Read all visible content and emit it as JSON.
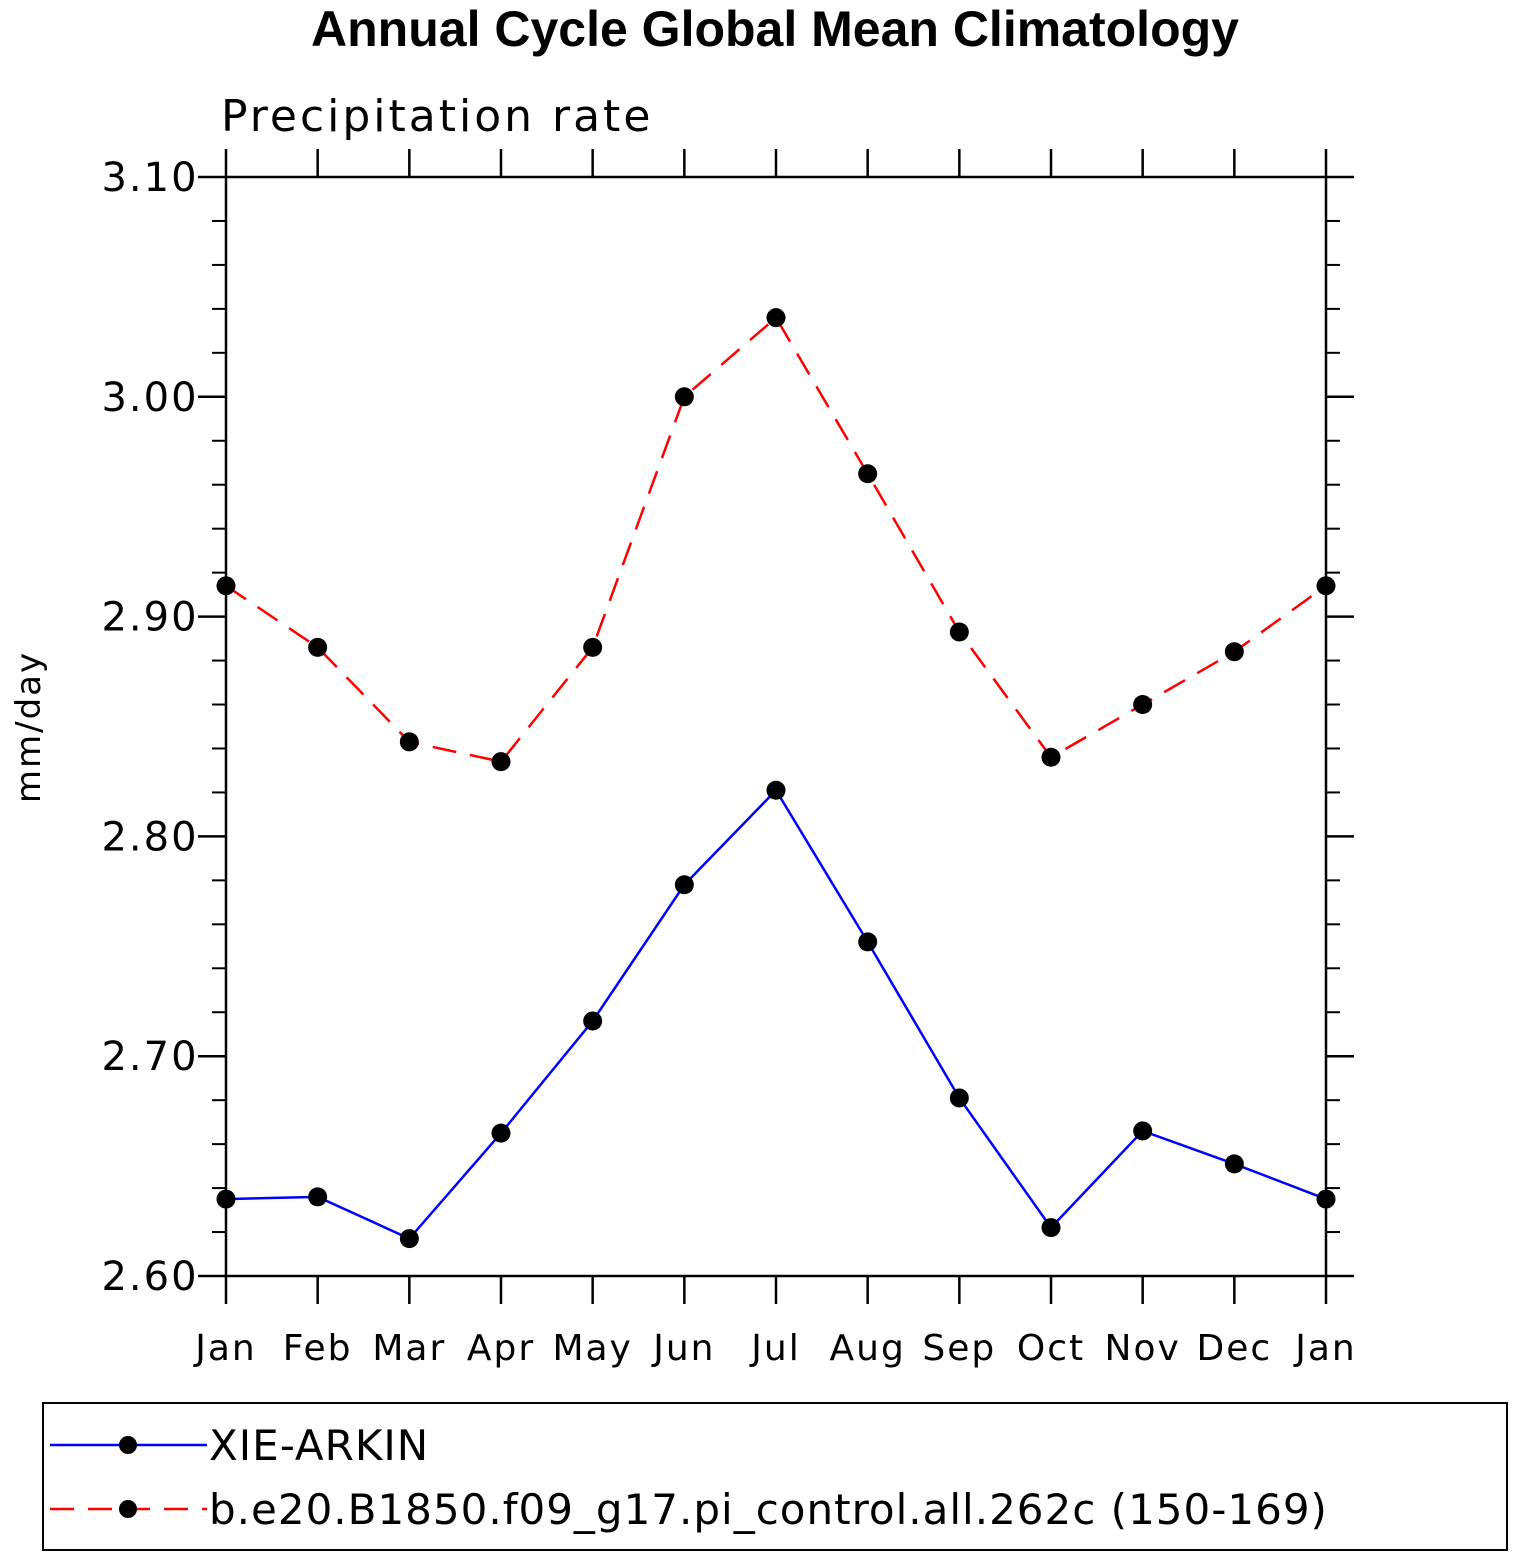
{
  "chart_data": {
    "type": "line",
    "title": "Annual Cycle Global Mean Climatology",
    "subtitle": "Precipitation rate",
    "ylabel": "mm/day",
    "xlabel": "",
    "categories": [
      "Jan",
      "Feb",
      "Mar",
      "Apr",
      "May",
      "Jun",
      "Jul",
      "Aug",
      "Sep",
      "Oct",
      "Nov",
      "Dec",
      "Jan"
    ],
    "ylim": [
      2.6,
      3.1
    ],
    "yticks": [
      "2.60",
      "2.70",
      "2.80",
      "2.90",
      "3.00",
      "3.10"
    ],
    "legend_position": "bottom",
    "grid": false,
    "series": [
      {
        "name": "XIE-ARKIN",
        "color": "#0000ff",
        "style": "solid",
        "values": [
          2.635,
          2.636,
          2.617,
          2.665,
          2.716,
          2.778,
          2.821,
          2.752,
          2.681,
          2.622,
          2.666,
          2.651,
          2.635
        ]
      },
      {
        "name": "b.e20.B1850.f09_g17.pi_control.all.262c (150-169)",
        "color": "#ff0000",
        "style": "dashed",
        "values": [
          2.914,
          2.886,
          2.843,
          2.834,
          2.886,
          3.0,
          3.036,
          2.965,
          2.893,
          2.836,
          2.86,
          2.884,
          2.914
        ]
      }
    ]
  }
}
